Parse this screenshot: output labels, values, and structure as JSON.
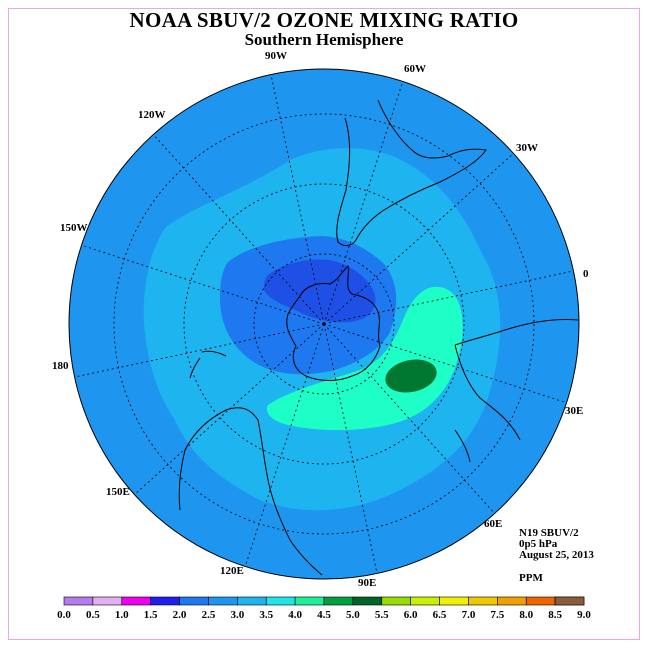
{
  "title": "NOAA SBUV/2 OZONE MIXING RATIO",
  "subtitle": "Southern Hemisphere",
  "longitude_labels": {
    "lon_90w": "90W",
    "lon_60w": "60W",
    "lon_30w": "30W",
    "lon_0": "0",
    "lon_30e": "30E",
    "lon_60e": "60E",
    "lon_90e": "90E",
    "lon_120e": "120E",
    "lon_150e": "150E",
    "lon_180": "180",
    "lon_150w": "150W",
    "lon_120w": "120W"
  },
  "info": {
    "satellite": "N19 SBUV/2",
    "level": "0p5 hPa",
    "date": "August 25, 2013",
    "units": "PPM"
  },
  "colorbar": {
    "ticks": [
      "0.0",
      "0.5",
      "1.0",
      "1.5",
      "2.0",
      "2.5",
      "3.0",
      "3.5",
      "4.0",
      "4.5",
      "5.0",
      "5.5",
      "6.0",
      "6.5",
      "7.0",
      "7.5",
      "8.0",
      "8.5",
      "9.0"
    ],
    "colors": [
      "#b57cf0",
      "#e0b0f0",
      "#f000f0",
      "#1e1ef0",
      "#1e78f0",
      "#1e96f0",
      "#1eb4f0",
      "#1ee6e6",
      "#1ef09a",
      "#00a040",
      "#006428",
      "#96dc00",
      "#c8f000",
      "#f0f000",
      "#f0c800",
      "#f0a000",
      "#f06400",
      "#f00000",
      "#8c5a3c"
    ]
  },
  "map_colors": {
    "ocean_base": "#1e8cf0",
    "level_3_0": "#1eb4f0",
    "level_2_0": "#1e78f0",
    "level_1_5": "#1e50e6",
    "level_3_5": "#1effc8",
    "level_4_5": "#007832"
  }
}
